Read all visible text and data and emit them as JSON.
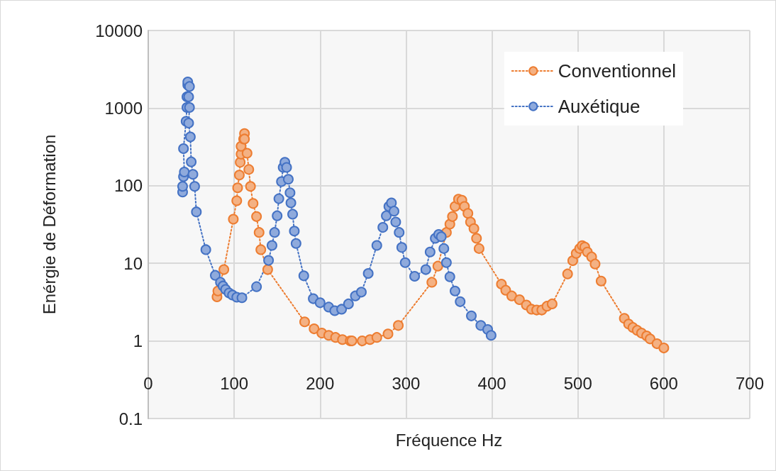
{
  "chart_data": {
    "type": "line",
    "xlabel": "Fréquence Hz",
    "ylabel": "Enérgie de Déformation",
    "log": "y",
    "xlim": [
      0,
      700
    ],
    "xticks": [
      0,
      100,
      200,
      300,
      400,
      500,
      600,
      700
    ],
    "ylim": [
      0.1,
      10000
    ],
    "yticks": [
      0.1,
      1,
      10,
      100,
      1000,
      10000
    ],
    "grid": true,
    "legend": "top right",
    "marker": "circle",
    "line_style": "dotted",
    "series": [
      {
        "name": "Conventionnel",
        "color": "#ed7d31",
        "x": [
          80,
          81,
          88,
          99,
          103,
          104,
          106,
          107,
          108,
          108,
          111,
          112,
          112,
          115,
          117,
          119,
          122,
          126,
          129,
          131,
          139,
          182,
          193,
          202,
          210,
          218,
          226,
          235,
          237,
          249,
          258,
          266,
          279,
          291,
          330,
          337,
          347,
          351,
          354,
          357,
          361,
          365,
          368,
          372,
          375,
          379,
          382,
          385,
          411,
          416,
          423,
          432,
          440,
          446,
          452,
          458,
          464,
          470,
          488,
          494,
          498,
          502,
          505,
          508,
          511,
          516,
          520,
          527,
          554,
          559,
          564,
          569,
          574,
          580,
          584,
          592,
          600
        ],
        "values": [
          3.7,
          4.4,
          8.3,
          37,
          64,
          94,
          137,
          200,
          255,
          322,
          400,
          470,
          400,
          262,
          162,
          98,
          59,
          40,
          25,
          15,
          8.3,
          1.76,
          1.43,
          1.26,
          1.18,
          1.11,
          1.04,
          1.0,
          1.0,
          1.0,
          1.04,
          1.11,
          1.23,
          1.58,
          5.7,
          9.2,
          25,
          32,
          40,
          54,
          67,
          65,
          54,
          44,
          34,
          28,
          21,
          15.5,
          5.4,
          4.5,
          3.8,
          3.4,
          2.9,
          2.56,
          2.5,
          2.5,
          2.8,
          3.0,
          7.3,
          10.8,
          13.4,
          15.5,
          16.9,
          16.2,
          14,
          12.1,
          9.8,
          5.9,
          1.95,
          1.65,
          1.49,
          1.37,
          1.26,
          1.16,
          1.06,
          0.92,
          0.81
        ]
      },
      {
        "name": "Auxétique",
        "color": "#4472c4",
        "x": [
          40,
          40,
          41,
          42,
          41,
          44,
          45,
          45,
          46,
          46,
          48,
          47,
          48,
          47,
          49,
          50,
          52,
          54,
          56,
          67,
          78,
          84,
          87,
          90,
          94,
          98,
          103,
          109,
          126,
          140,
          144,
          147,
          150,
          152,
          155,
          157,
          159,
          161,
          163,
          165,
          166,
          168,
          170,
          172,
          181,
          192,
          200,
          210,
          217,
          225,
          233,
          241,
          248,
          256,
          266,
          273,
          277,
          280,
          283,
          286,
          288,
          292,
          295,
          299,
          310,
          323,
          328,
          334,
          338,
          341,
          344,
          347,
          351,
          357,
          363,
          376,
          387,
          395,
          399
        ],
        "values": [
          83,
          98,
          131,
          150,
          300,
          675,
          1020,
          1400,
          1990,
          2170,
          1900,
          1400,
          1020,
          640,
          425,
          203,
          140,
          98,
          46,
          15,
          7,
          5.7,
          5.1,
          4.6,
          4.15,
          3.9,
          3.66,
          3.6,
          5,
          10.9,
          17,
          25,
          41,
          68,
          113,
          172,
          200,
          172,
          121,
          81,
          60,
          43,
          26,
          18,
          6.9,
          3.5,
          3.1,
          2.73,
          2.45,
          2.56,
          3.0,
          3.8,
          4.25,
          7.4,
          17,
          29,
          41,
          54,
          60,
          47,
          34,
          25,
          16,
          10.2,
          6.8,
          8.3,
          14,
          21,
          23.5,
          22,
          15.5,
          10.2,
          6.7,
          4.4,
          3.2,
          2.1,
          1.58,
          1.4,
          1.18
        ]
      }
    ]
  }
}
